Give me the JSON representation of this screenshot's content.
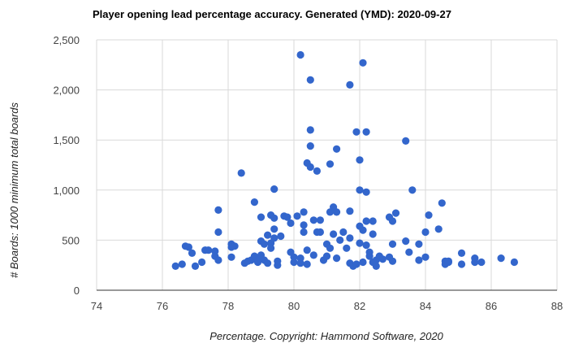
{
  "chart_data": {
    "type": "scatter",
    "title": "Player opening lead percentage accuracy. Generated (YMD): 2020-09-27",
    "xlabel": "Percentage. Copyright: Hammond Software, 2020",
    "ylabel": "# Boards: 1000 minimum total boards",
    "xlim": [
      74,
      88
    ],
    "ylim": [
      0,
      2500
    ],
    "x_ticks": [
      "74",
      "76",
      "78",
      "80",
      "82",
      "84",
      "86",
      "88"
    ],
    "y_ticks": [
      "0",
      "500",
      "1,000",
      "1,500",
      "2,000",
      "2,500"
    ],
    "grid": true,
    "legend": "none",
    "colors": {
      "points": "#3366cc",
      "grid": "#d9d9d9",
      "baseline": "#333333"
    },
    "points": [
      [
        76.4,
        240
      ],
      [
        76.6,
        260
      ],
      [
        76.7,
        440
      ],
      [
        76.8,
        430
      ],
      [
        76.9,
        370
      ],
      [
        77.0,
        240
      ],
      [
        77.2,
        280
      ],
      [
        77.3,
        400
      ],
      [
        77.4,
        400
      ],
      [
        77.6,
        390
      ],
      [
        77.6,
        340
      ],
      [
        77.7,
        580
      ],
      [
        77.7,
        800
      ],
      [
        77.7,
        300
      ],
      [
        78.1,
        460
      ],
      [
        78.1,
        430
      ],
      [
        78.1,
        330
      ],
      [
        78.2,
        440
      ],
      [
        78.4,
        1170
      ],
      [
        78.5,
        270
      ],
      [
        78.6,
        290
      ],
      [
        78.7,
        300
      ],
      [
        78.8,
        880
      ],
      [
        78.8,
        340
      ],
      [
        78.9,
        300
      ],
      [
        78.9,
        280
      ],
      [
        79.0,
        730
      ],
      [
        79.0,
        490
      ],
      [
        79.0,
        350
      ],
      [
        79.1,
        460
      ],
      [
        79.1,
        300
      ],
      [
        79.2,
        550
      ],
      [
        79.2,
        270
      ],
      [
        79.3,
        750
      ],
      [
        79.3,
        470
      ],
      [
        79.3,
        420
      ],
      [
        79.4,
        720
      ],
      [
        79.4,
        610
      ],
      [
        79.4,
        520
      ],
      [
        79.4,
        1010
      ],
      [
        79.5,
        250
      ],
      [
        79.5,
        290
      ],
      [
        79.6,
        540
      ],
      [
        79.7,
        740
      ],
      [
        79.8,
        730
      ],
      [
        79.9,
        670
      ],
      [
        79.9,
        380
      ],
      [
        80.0,
        280
      ],
      [
        80.0,
        330
      ],
      [
        80.1,
        740
      ],
      [
        80.2,
        2350
      ],
      [
        80.2,
        320
      ],
      [
        80.2,
        270
      ],
      [
        80.3,
        580
      ],
      [
        80.3,
        650
      ],
      [
        80.3,
        780
      ],
      [
        80.4,
        400
      ],
      [
        80.4,
        260
      ],
      [
        80.4,
        1270
      ],
      [
        80.5,
        2100
      ],
      [
        80.5,
        1600
      ],
      [
        80.5,
        1440
      ],
      [
        80.5,
        1230
      ],
      [
        80.6,
        350
      ],
      [
        80.6,
        700
      ],
      [
        80.7,
        580
      ],
      [
        80.7,
        1190
      ],
      [
        80.8,
        700
      ],
      [
        80.8,
        580
      ],
      [
        80.9,
        300
      ],
      [
        81.0,
        460
      ],
      [
        81.0,
        340
      ],
      [
        81.1,
        780
      ],
      [
        81.1,
        1260
      ],
      [
        81.1,
        420
      ],
      [
        81.2,
        830
      ],
      [
        81.2,
        560
      ],
      [
        81.3,
        780
      ],
      [
        81.3,
        1410
      ],
      [
        81.3,
        320
      ],
      [
        81.4,
        500
      ],
      [
        81.5,
        580
      ],
      [
        81.6,
        420
      ],
      [
        81.7,
        2050
      ],
      [
        81.7,
        790
      ],
      [
        81.7,
        520
      ],
      [
        81.7,
        270
      ],
      [
        81.8,
        240
      ],
      [
        81.9,
        1580
      ],
      [
        81.9,
        260
      ],
      [
        82.0,
        1300
      ],
      [
        82.0,
        1000
      ],
      [
        82.0,
        640
      ],
      [
        82.0,
        470
      ],
      [
        82.1,
        2270
      ],
      [
        82.1,
        600
      ],
      [
        82.1,
        280
      ],
      [
        82.2,
        1580
      ],
      [
        82.2,
        980
      ],
      [
        82.2,
        690
      ],
      [
        82.2,
        450
      ],
      [
        82.3,
        380
      ],
      [
        82.3,
        340
      ],
      [
        82.4,
        560
      ],
      [
        82.4,
        690
      ],
      [
        82.4,
        280
      ],
      [
        82.5,
        300
      ],
      [
        82.5,
        240
      ],
      [
        82.6,
        340
      ],
      [
        82.7,
        310
      ],
      [
        82.9,
        330
      ],
      [
        82.9,
        730
      ],
      [
        83.0,
        290
      ],
      [
        83.0,
        690
      ],
      [
        83.0,
        460
      ],
      [
        83.1,
        770
      ],
      [
        83.4,
        1490
      ],
      [
        83.4,
        490
      ],
      [
        83.5,
        380
      ],
      [
        83.6,
        1000
      ],
      [
        83.8,
        300
      ],
      [
        83.8,
        460
      ],
      [
        84.0,
        580
      ],
      [
        84.0,
        330
      ],
      [
        84.1,
        750
      ],
      [
        84.4,
        610
      ],
      [
        84.5,
        870
      ],
      [
        84.6,
        290
      ],
      [
        84.6,
        260
      ],
      [
        84.7,
        280
      ],
      [
        84.7,
        290
      ],
      [
        85.1,
        370
      ],
      [
        85.1,
        260
      ],
      [
        85.5,
        320
      ],
      [
        85.5,
        280
      ],
      [
        85.7,
        280
      ],
      [
        86.3,
        320
      ],
      [
        86.7,
        280
      ]
    ]
  }
}
